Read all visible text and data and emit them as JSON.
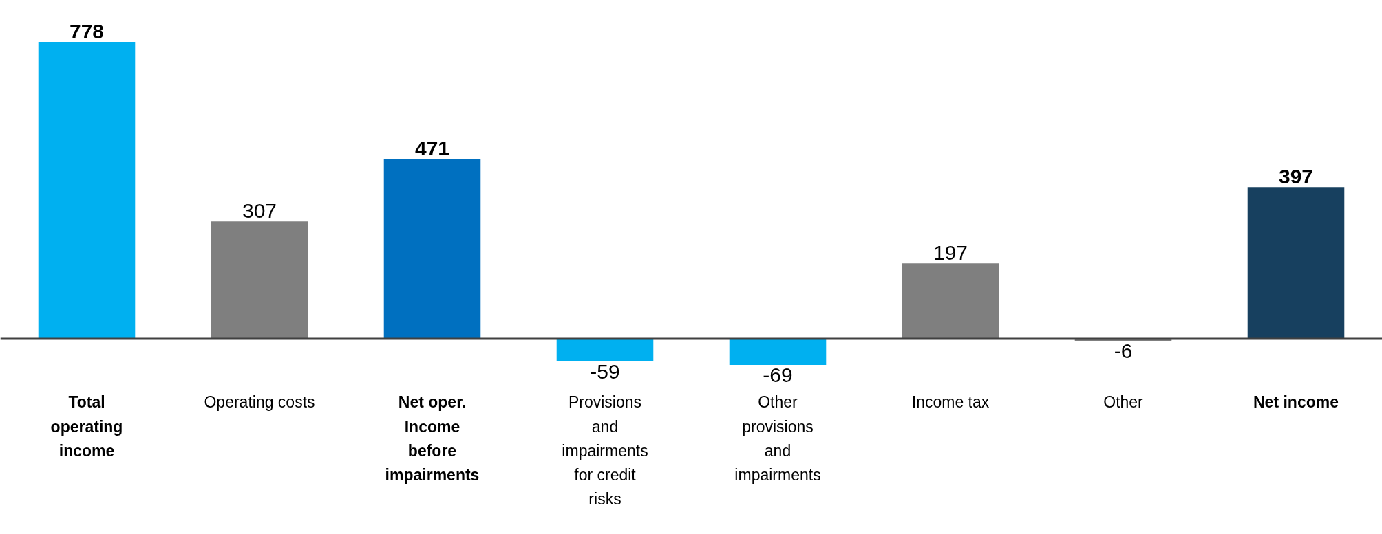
{
  "chart_data": {
    "type": "bar",
    "categories": [
      "Total operating income",
      "Operating costs",
      "Net oper. Income before impairments",
      "Provisions and impairments for credit risks",
      "Other provisions and impairments",
      "Income tax",
      "Other",
      "Net income"
    ],
    "values": [
      778,
      307,
      471,
      -59,
      -69,
      197,
      -6,
      397
    ],
    "colors": [
      "#00b0f0",
      "#7f7f7f",
      "#0070c0",
      "#00b0f0",
      "#00b0f0",
      "#7f7f7f",
      "#7f7f7f",
      "#17405f"
    ],
    "data_labels": true,
    "grid": false
  }
}
